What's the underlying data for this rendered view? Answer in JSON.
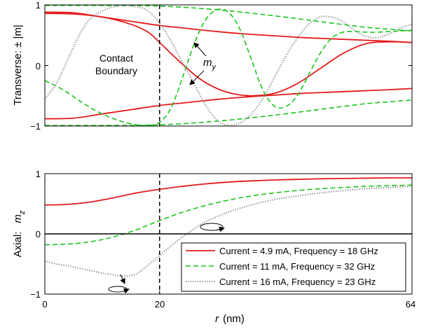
{
  "chart_data": [
    {
      "type": "line",
      "ylabel": "Transverse:  ± |m|",
      "xlim": [
        0,
        64
      ],
      "ylim": [
        -1,
        1
      ],
      "xticks": [],
      "yticks": [
        "−1",
        "0",
        "1"
      ],
      "annotations": {
        "contact_1": "Contact",
        "contact_2": "Boundary",
        "my_base": "m",
        "my_sub": "y"
      },
      "contact_boundary_x": 20,
      "series": [
        {
          "style": "red-solid",
          "role": "amplitude-upper",
          "x": [
            0,
            5,
            10,
            15,
            20,
            25,
            30,
            35,
            40,
            45,
            50,
            55,
            60,
            64
          ],
          "y": [
            0.88,
            0.87,
            0.8,
            0.73,
            0.66,
            0.61,
            0.56,
            0.52,
            0.49,
            0.46,
            0.44,
            0.42,
            0.4,
            0.38
          ]
        },
        {
          "style": "red-solid",
          "role": "amplitude-lower",
          "x": [
            0,
            5,
            10,
            15,
            20,
            25,
            30,
            35,
            40,
            45,
            50,
            55,
            60,
            64
          ],
          "y": [
            -0.88,
            -0.87,
            -0.8,
            -0.73,
            -0.66,
            -0.61,
            -0.56,
            -0.52,
            -0.49,
            -0.46,
            -0.44,
            -0.42,
            -0.4,
            -0.38
          ]
        },
        {
          "style": "red-solid",
          "role": "my-profile",
          "x": [
            0,
            5,
            10,
            15,
            18,
            20,
            24,
            27,
            30,
            33,
            36,
            40,
            44,
            48,
            52,
            56,
            60,
            64
          ],
          "y": [
            0.86,
            0.85,
            0.8,
            0.68,
            0.55,
            0.38,
            0.02,
            -0.22,
            -0.38,
            -0.47,
            -0.5,
            -0.46,
            -0.3,
            -0.05,
            0.2,
            0.36,
            0.39,
            0.38
          ]
        },
        {
          "style": "green-dashed",
          "role": "amplitude-upper",
          "x": [
            0,
            10,
            20,
            30,
            40,
            50,
            56,
            60,
            64
          ],
          "y": [
            0.99,
            0.99,
            0.98,
            0.92,
            0.82,
            0.7,
            0.63,
            0.6,
            0.57
          ]
        },
        {
          "style": "green-dashed",
          "role": "amplitude-lower",
          "x": [
            0,
            10,
            20,
            30,
            40,
            50,
            56,
            60,
            64
          ],
          "y": [
            -0.99,
            -0.99,
            -0.98,
            -0.92,
            -0.82,
            -0.7,
            -0.63,
            -0.6,
            -0.57
          ]
        },
        {
          "style": "green-dashed",
          "role": "my-profile",
          "x": [
            0,
            2,
            4,
            6,
            8,
            10,
            12,
            14,
            16,
            18,
            20,
            22,
            24,
            26,
            28,
            30,
            32,
            34,
            36,
            38,
            40,
            42,
            44,
            46,
            48,
            50,
            52,
            54,
            56,
            58,
            60,
            62,
            64
          ],
          "y": [
            -0.25,
            -0.34,
            -0.45,
            -0.58,
            -0.7,
            -0.8,
            -0.88,
            -0.94,
            -0.98,
            -0.99,
            -0.94,
            -0.7,
            -0.2,
            0.35,
            0.75,
            0.92,
            0.88,
            0.6,
            0.1,
            -0.4,
            -0.67,
            -0.68,
            -0.5,
            -0.15,
            0.2,
            0.45,
            0.55,
            0.56,
            0.55,
            0.55,
            0.56,
            0.57,
            0.58
          ]
        },
        {
          "style": "gray-dotted",
          "role": "my-profile",
          "x": [
            0,
            2,
            4,
            6,
            8,
            10,
            12,
            14,
            16,
            18,
            20,
            22,
            24,
            26,
            28,
            30,
            32,
            34,
            36,
            38,
            40,
            42,
            44,
            46,
            48,
            50,
            52,
            54,
            56,
            58,
            60,
            62,
            64
          ],
          "y": [
            -0.55,
            -0.3,
            0.1,
            0.5,
            0.78,
            0.9,
            0.97,
            0.99,
            0.97,
            0.9,
            0.7,
            0.4,
            0.05,
            -0.3,
            -0.65,
            -0.9,
            -0.99,
            -0.95,
            -0.8,
            -0.55,
            -0.2,
            0.15,
            0.45,
            0.68,
            0.8,
            0.8,
            0.72,
            0.58,
            0.48,
            0.46,
            0.52,
            0.62,
            0.68
          ]
        }
      ]
    },
    {
      "type": "line",
      "ylabel_prefix": "Axial:",
      "ylabel_base": "m",
      "ylabel_sub": "z",
      "xlabel_var": "r",
      "xlabel_unit": "(nm)",
      "xlim": [
        0,
        64
      ],
      "ylim": [
        -1,
        1
      ],
      "xticks": [
        "0",
        "20",
        "64"
      ],
      "yticks": [
        "−1",
        "0",
        "1"
      ],
      "contact_boundary_x": 20,
      "legend_position": "bottom-right",
      "series": [
        {
          "name": "Current = 4.9 mA, Frequency = 18 GHz",
          "style": "red-solid",
          "x": [
            0,
            4,
            8,
            12,
            16,
            20,
            24,
            28,
            32,
            36,
            40,
            44,
            48,
            52,
            56,
            60,
            64
          ],
          "y": [
            0.48,
            0.49,
            0.53,
            0.6,
            0.68,
            0.74,
            0.79,
            0.83,
            0.86,
            0.88,
            0.895,
            0.905,
            0.915,
            0.92,
            0.925,
            0.93,
            0.93
          ]
        },
        {
          "name": "Current = 11 mA, Frequency = 32 GHz",
          "style": "green-dashed",
          "x": [
            0,
            4,
            8,
            12,
            16,
            20,
            24,
            28,
            32,
            36,
            40,
            44,
            48,
            52,
            56,
            60,
            64
          ],
          "y": [
            -0.18,
            -0.17,
            -0.13,
            -0.05,
            0.07,
            0.22,
            0.36,
            0.47,
            0.56,
            0.63,
            0.68,
            0.72,
            0.75,
            0.77,
            0.79,
            0.8,
            0.81
          ]
        },
        {
          "name": "Current = 16 mA, Frequency = 23 GHz",
          "style": "gray-dotted",
          "x": [
            0,
            2,
            4,
            6,
            8,
            10,
            12,
            14,
            16,
            18,
            20,
            22,
            24,
            26,
            28,
            32,
            36,
            40,
            44,
            48,
            52,
            56,
            60,
            64
          ],
          "y": [
            -0.45,
            -0.5,
            -0.53,
            -0.57,
            -0.61,
            -0.65,
            -0.68,
            -0.7,
            -0.66,
            -0.52,
            -0.36,
            -0.2,
            -0.05,
            0.08,
            0.2,
            0.36,
            0.48,
            0.57,
            0.63,
            0.68,
            0.72,
            0.75,
            0.77,
            0.79
          ]
        }
      ]
    }
  ],
  "colors": {
    "red": "#e31b1b",
    "green": "#19c619",
    "gray": "#8a8a8a",
    "axes": "#000000"
  }
}
